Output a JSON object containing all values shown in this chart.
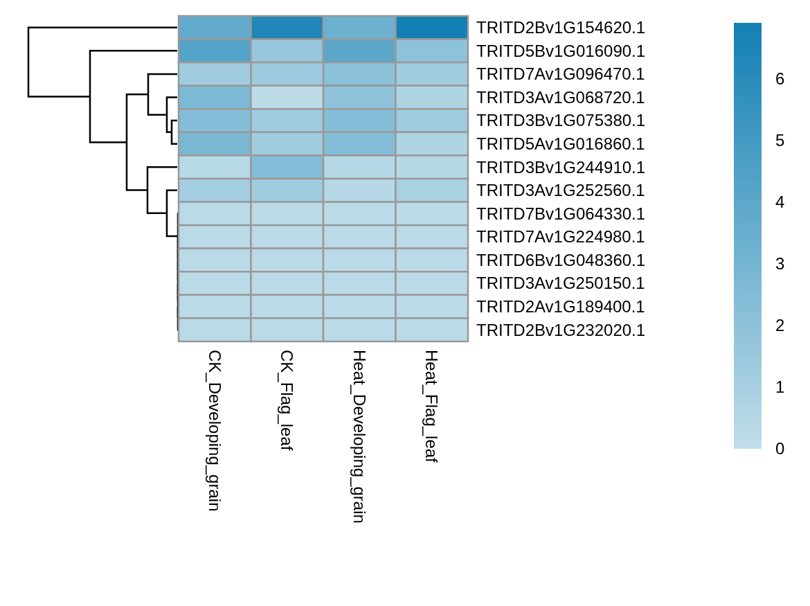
{
  "chart_data": {
    "type": "heatmap",
    "categories": [
      "CK_Developing_grain",
      "CK_Flag_leaf",
      "Heat_Developing_grain",
      "Heat_Flag_leaf"
    ],
    "y_categories": [
      "TRITD2Bv1G154620.1",
      "TRITD5Bv1G016090.1",
      "TRITD7Av1G096470.1",
      "TRITD3Av1G068720.1",
      "TRITD3Bv1G075380.1",
      "TRITD5Av1G016860.1",
      "TRITD3Bv1G244910.1",
      "TRITD3Av1G252560.1",
      "TRITD7Bv1G064330.1",
      "TRITD7Av1G224980.1",
      "TRITD6Bv1G048360.1",
      "TRITD3Av1G250150.1",
      "TRITD2Av1G189400.1",
      "TRITD2Bv1G232020.1"
    ],
    "cells": [
      [
        3.8,
        6.4,
        3.3,
        6.9
      ],
      [
        4.3,
        1.6,
        4.0,
        2.0
      ],
      [
        1.2,
        1.4,
        2.1,
        1.2
      ],
      [
        2.7,
        0.1,
        2.0,
        0.7
      ],
      [
        2.4,
        1.3,
        2.4,
        1.3
      ],
      [
        2.8,
        1.2,
        2.4,
        0.7
      ],
      [
        0.3,
        2.4,
        0.4,
        0.4
      ],
      [
        1.1,
        1.2,
        0.4,
        0.9
      ],
      [
        0.2,
        0.2,
        0.2,
        0.2
      ],
      [
        0.2,
        0.2,
        0.2,
        0.2
      ],
      [
        0.2,
        0.2,
        0.2,
        0.2
      ],
      [
        0.2,
        0.2,
        0.2,
        0.2
      ],
      [
        0.2,
        0.2,
        0.2,
        0.2
      ],
      [
        0.2,
        0.2,
        0.2,
        0.2
      ]
    ],
    "clim": [
      0,
      6.9
    ],
    "cticks": [
      0,
      1,
      2,
      3,
      4,
      5,
      6
    ]
  }
}
